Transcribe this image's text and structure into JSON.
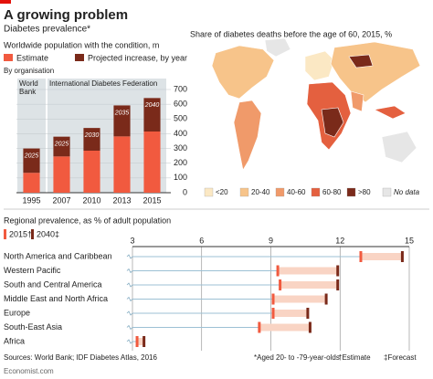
{
  "header": {
    "title": "A growing problem",
    "subtitle": "Diabetes prevalence*"
  },
  "chart_data": [
    {
      "type": "bar",
      "stacked": true,
      "title": "Worldwide population with the condition, m",
      "subtitle": "By organisation",
      "groups": [
        {
          "label": "World Bank",
          "size": 1
        },
        {
          "label": "International Diabetes Federation",
          "size": 4
        }
      ],
      "categories": [
        "1995",
        "2007",
        "2010",
        "2013",
        "2015"
      ],
      "series": [
        {
          "name": "Estimate",
          "color": "#f15a3f",
          "values": [
            135,
            246,
            285,
            382,
            415
          ]
        },
        {
          "name": "Projected increase, by year",
          "color": "#7a2a1a",
          "values": [
            165,
            134,
            154,
            210,
            227
          ],
          "projection_years": [
            "2025",
            "2025",
            "2030",
            "2035",
            "2040"
          ]
        }
      ],
      "ylim": [
        0,
        700
      ],
      "yticks": [
        0,
        100,
        200,
        300,
        400,
        500,
        600,
        700
      ],
      "grid": true
    },
    {
      "type": "map",
      "title": "Share of diabetes deaths before the age of 60, 2015, %",
      "legend": {
        "labels": [
          "<20",
          "20-40",
          "40-60",
          "60-80",
          ">80",
          "No data"
        ],
        "colors": [
          "#fbe8c4",
          "#f7c48a",
          "#f09a6a",
          "#e4603f",
          "#7a2a1a",
          "#e6e6e6"
        ]
      }
    },
    {
      "type": "dot",
      "title": "Regional prevalence, as % of adult population",
      "categories": [
        "North America and Caribbean",
        "Western Pacific",
        "South and Central America",
        "Middle East and North Africa",
        "Europe",
        "South-East Asia",
        "Africa"
      ],
      "series": [
        {
          "name": "2015†",
          "color": "#f15a3f",
          "values": [
            12.9,
            9.3,
            9.4,
            9.1,
            9.1,
            8.5,
            3.2
          ]
        },
        {
          "name": "2040‡",
          "color": "#7a2a1a",
          "values": [
            14.7,
            11.9,
            11.9,
            11.4,
            10.6,
            10.7,
            3.5
          ]
        }
      ],
      "xlim": [
        3,
        15
      ],
      "xticks": [
        3,
        6,
        9,
        12,
        15
      ]
    }
  ],
  "footer": {
    "source": "Sources: World Bank; IDF Diabetes Atlas, 2016",
    "notes": [
      "*Aged 20- to -79-year-olds",
      "†Estimate",
      "‡Forecast"
    ],
    "brand": "Economist.com"
  }
}
